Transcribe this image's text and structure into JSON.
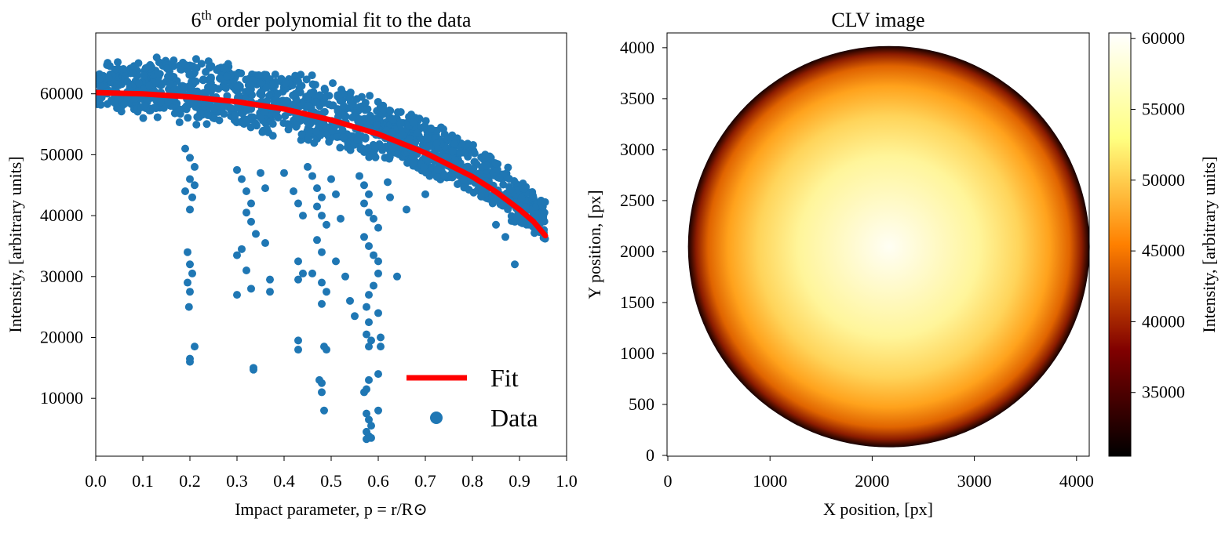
{
  "charts": [
    {
      "type": "scatter",
      "title_base": "6",
      "title_sup": "th",
      "title_rest": " order polynomial fit to the data",
      "xlabel": "Impact parameter, p = r/R⊙",
      "ylabel": "Intensity, [arbitrary units]",
      "xlim": [
        0.0,
        1.0
      ],
      "ylim": [
        500,
        70000
      ],
      "xticks": [
        "0.0",
        "0.1",
        "0.2",
        "0.3",
        "0.4",
        "0.5",
        "0.6",
        "0.7",
        "0.8",
        "0.9",
        "1.0"
      ],
      "yticks": [
        "10000",
        "20000",
        "30000",
        "40000",
        "50000",
        "60000"
      ],
      "legend": {
        "placement": "lower-right",
        "fit_label": "Fit",
        "data_label": "Data"
      },
      "colors": {
        "data": "#1f77b4",
        "fit": "#ff0000"
      },
      "fit_curve": [
        [
          0.0,
          60200
        ],
        [
          0.1,
          60000
        ],
        [
          0.2,
          59500
        ],
        [
          0.3,
          58700
        ],
        [
          0.4,
          57500
        ],
        [
          0.5,
          55700
        ],
        [
          0.6,
          53400
        ],
        [
          0.7,
          50300
        ],
        [
          0.8,
          46400
        ],
        [
          0.85,
          43900
        ],
        [
          0.9,
          41000
        ],
        [
          0.93,
          39000
        ],
        [
          0.955,
          36700
        ]
      ],
      "data_band": {
        "upper": [
          [
            0.0,
            65500
          ],
          [
            0.15,
            66500
          ],
          [
            0.3,
            65500
          ],
          [
            0.45,
            63500
          ],
          [
            0.6,
            59500
          ],
          [
            0.75,
            54500
          ],
          [
            0.85,
            50000
          ],
          [
            0.955,
            43000
          ]
        ],
        "lower": [
          [
            0.0,
            57500
          ],
          [
            0.15,
            55000
          ],
          [
            0.3,
            54000
          ],
          [
            0.45,
            51500
          ],
          [
            0.6,
            49000
          ],
          [
            0.75,
            45000
          ],
          [
            0.85,
            41000
          ],
          [
            0.955,
            34500
          ]
        ]
      },
      "outliers": [
        [
          0.19,
          51000
        ],
        [
          0.2,
          49500
        ],
        [
          0.21,
          48000
        ],
        [
          0.19,
          44000
        ],
        [
          0.2,
          46000
        ],
        [
          0.205,
          43000
        ],
        [
          0.21,
          45000
        ],
        [
          0.2,
          41000
        ],
        [
          0.195,
          34000
        ],
        [
          0.2,
          32000
        ],
        [
          0.205,
          30500
        ],
        [
          0.195,
          29000
        ],
        [
          0.2,
          27500
        ],
        [
          0.198,
          25000
        ],
        [
          0.21,
          18500
        ],
        [
          0.2,
          16500
        ],
        [
          0.2,
          16000
        ],
        [
          0.3,
          47500
        ],
        [
          0.31,
          46000
        ],
        [
          0.32,
          44000
        ],
        [
          0.33,
          42000
        ],
        [
          0.32,
          40500
        ],
        [
          0.33,
          39000
        ],
        [
          0.34,
          37000
        ],
        [
          0.3,
          33500
        ],
        [
          0.31,
          34500
        ],
        [
          0.32,
          31000
        ],
        [
          0.3,
          27000
        ],
        [
          0.33,
          28000
        ],
        [
          0.35,
          47000
        ],
        [
          0.36,
          44500
        ],
        [
          0.36,
          35500
        ],
        [
          0.37,
          29500
        ],
        [
          0.37,
          27500
        ],
        [
          0.335,
          15000
        ],
        [
          0.335,
          14700
        ],
        [
          0.4,
          47000
        ],
        [
          0.42,
          44000
        ],
        [
          0.43,
          42000
        ],
        [
          0.44,
          40000
        ],
        [
          0.43,
          32500
        ],
        [
          0.44,
          30500
        ],
        [
          0.43,
          29500
        ],
        [
          0.43,
          19500
        ],
        [
          0.43,
          18000
        ],
        [
          0.45,
          48000
        ],
        [
          0.46,
          46500
        ],
        [
          0.47,
          44500
        ],
        [
          0.48,
          43000
        ],
        [
          0.47,
          41500
        ],
        [
          0.48,
          40000
        ],
        [
          0.49,
          38500
        ],
        [
          0.47,
          36000
        ],
        [
          0.48,
          34000
        ],
        [
          0.46,
          30500
        ],
        [
          0.48,
          29000
        ],
        [
          0.49,
          27500
        ],
        [
          0.48,
          25500
        ],
        [
          0.485,
          18500
        ],
        [
          0.49,
          18000
        ],
        [
          0.475,
          13000
        ],
        [
          0.48,
          12500
        ],
        [
          0.48,
          11000
        ],
        [
          0.485,
          8000
        ],
        [
          0.5,
          46000
        ],
        [
          0.51,
          43500
        ],
        [
          0.52,
          39500
        ],
        [
          0.51,
          32500
        ],
        [
          0.53,
          30000
        ],
        [
          0.54,
          26000
        ],
        [
          0.55,
          23500
        ],
        [
          0.56,
          46500
        ],
        [
          0.57,
          45000
        ],
        [
          0.58,
          43500
        ],
        [
          0.57,
          42000
        ],
        [
          0.58,
          40500
        ],
        [
          0.59,
          39500
        ],
        [
          0.6,
          38000
        ],
        [
          0.57,
          36500
        ],
        [
          0.58,
          35000
        ],
        [
          0.59,
          33500
        ],
        [
          0.6,
          32500
        ],
        [
          0.6,
          30500
        ],
        [
          0.59,
          28500
        ],
        [
          0.58,
          27000
        ],
        [
          0.575,
          25000
        ],
        [
          0.58,
          22500
        ],
        [
          0.6,
          24000
        ],
        [
          0.575,
          20500
        ],
        [
          0.585,
          19500
        ],
        [
          0.58,
          18500
        ],
        [
          0.605,
          20000
        ],
        [
          0.605,
          18500
        ],
        [
          0.6,
          14000
        ],
        [
          0.58,
          13000
        ],
        [
          0.575,
          11500
        ],
        [
          0.57,
          11000
        ],
        [
          0.6,
          8000
        ],
        [
          0.575,
          7500
        ],
        [
          0.58,
          6500
        ],
        [
          0.585,
          5500
        ],
        [
          0.575,
          4500
        ],
        [
          0.58,
          3800
        ],
        [
          0.585,
          3500
        ],
        [
          0.575,
          3300
        ],
        [
          0.62,
          45500
        ],
        [
          0.625,
          43000
        ],
        [
          0.64,
          30000
        ],
        [
          0.66,
          41000
        ],
        [
          0.7,
          43500
        ],
        [
          0.85,
          38500
        ],
        [
          0.87,
          36500
        ],
        [
          0.89,
          32000
        ]
      ]
    },
    {
      "type": "heatmap",
      "title": "CLV image",
      "xlabel": "X position, [px]",
      "ylabel": "Y position, [px]",
      "xlim": [
        0,
        4096
      ],
      "ylim": [
        0,
        4096
      ],
      "xticks": [
        "0",
        "1000",
        "2000",
        "3000",
        "4000"
      ],
      "yticks": [
        "0",
        "500",
        "1000",
        "1500",
        "2000",
        "2500",
        "3000",
        "3500",
        "4000"
      ],
      "disk": {
        "center_x": 2048,
        "center_y": 2048,
        "radius": 1920
      },
      "colormap": "afmhot",
      "colorbar": {
        "label": "Intensity, [arbitrary units]",
        "range": [
          30500,
          60400
        ],
        "ticks": [
          "35000",
          "40000",
          "45000",
          "50000",
          "55000",
          "60000"
        ]
      }
    }
  ]
}
